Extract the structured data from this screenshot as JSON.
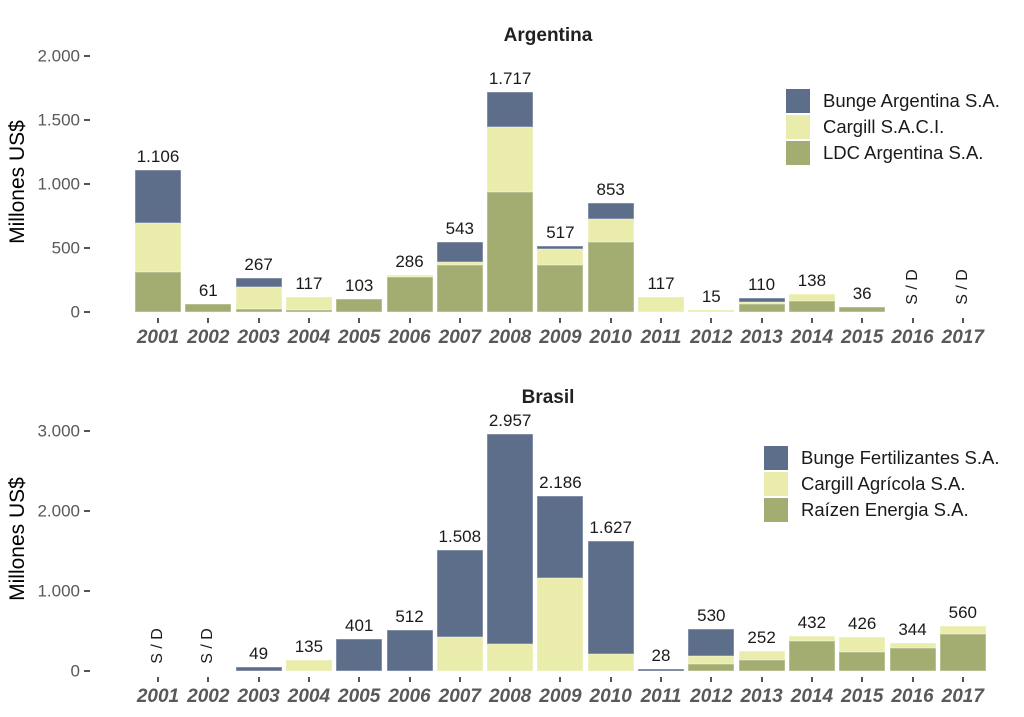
{
  "chart_data": [
    {
      "type": "bar",
      "stacked": true,
      "title": "Argentina",
      "ylabel": "Millones US$",
      "grid": false,
      "legend_position": "top-right-inside",
      "ylim": [
        0,
        2000
      ],
      "no_data_text": "S / D",
      "x": [
        "2001",
        "2002",
        "2003",
        "2004",
        "2005",
        "2006",
        "2007",
        "2008",
        "2009",
        "2010",
        "2011",
        "2012",
        "2013",
        "2014",
        "2015",
        "2016",
        "2017"
      ],
      "y_ticks": [
        {
          "v": 0,
          "label": "0"
        },
        {
          "v": 500,
          "label": "500"
        },
        {
          "v": 1000,
          "label": "1.000"
        },
        {
          "v": 1500,
          "label": "1.500"
        },
        {
          "v": 2000,
          "label": "2.000"
        }
      ],
      "totals": [
        "1.106",
        "61",
        "267",
        "117",
        "103",
        "286",
        "543",
        "1.717",
        "517",
        "853",
        "117",
        "15",
        "110",
        "138",
        "36",
        "S / D",
        "S / D"
      ],
      "series": [
        {
          "name": "LDC Argentina S.A.",
          "color": "#a3ad72",
          "values": [
            310,
            61,
            20,
            15,
            103,
            272,
            365,
            935,
            365,
            545,
            0,
            0,
            65,
            88,
            36,
            null,
            null
          ]
        },
        {
          "name": "Cargill S.A.C.I.",
          "color": "#e9ecaa",
          "values": [
            382,
            0,
            172,
            102,
            0,
            14,
            28,
            510,
            125,
            185,
            117,
            15,
            15,
            50,
            0,
            null,
            null
          ]
        },
        {
          "name": "Bunge Argentina S.A.",
          "color": "#5d6e8b",
          "values": [
            414,
            0,
            75,
            0,
            0,
            0,
            150,
            272,
            27,
            123,
            0,
            0,
            30,
            0,
            0,
            null,
            null
          ]
        }
      ],
      "legend": [
        {
          "label": "Bunge Argentina S.A.",
          "color": "#5d6e8b"
        },
        {
          "label": "Cargill S.A.C.I.",
          "color": "#e9ecaa"
        },
        {
          "label": "LDC Argentina S.A.",
          "color": "#a3ad72"
        }
      ]
    },
    {
      "type": "bar",
      "stacked": true,
      "title": "Brasil",
      "ylabel": "Millones US$",
      "grid": false,
      "legend_position": "top-right-inside",
      "ylim": [
        0,
        3000
      ],
      "no_data_text": "S / D",
      "x": [
        "2001",
        "2002",
        "2003",
        "2004",
        "2005",
        "2006",
        "2007",
        "2008",
        "2009",
        "2010",
        "2011",
        "2012",
        "2013",
        "2014",
        "2015",
        "2016",
        "2017"
      ],
      "y_ticks": [
        {
          "v": 0,
          "label": "0"
        },
        {
          "v": 1000,
          "label": "1.000"
        },
        {
          "v": 2000,
          "label": "2.000"
        },
        {
          "v": 3000,
          "label": "3.000"
        }
      ],
      "totals": [
        "S / D",
        "S / D",
        "49",
        "135",
        "401",
        "512",
        "1.508",
        "2.957",
        "2.186",
        "1.627",
        "28",
        "530",
        "252",
        "432",
        "426",
        "344",
        "560"
      ],
      "series": [
        {
          "name": "Raízen Energia S.A.",
          "color": "#a3ad72",
          "values": [
            null,
            null,
            0,
            0,
            0,
            0,
            0,
            0,
            0,
            0,
            0,
            90,
            135,
            375,
            235,
            290,
            458
          ]
        },
        {
          "name": "Cargill Agrícola S.A.",
          "color": "#e9ecaa",
          "values": [
            null,
            null,
            0,
            135,
            0,
            0,
            425,
            340,
            1160,
            210,
            0,
            100,
            117,
            57,
            191,
            54,
            102
          ]
        },
        {
          "name": "Bunge Fertilizantes S.A.",
          "color": "#5d6e8b",
          "values": [
            null,
            null,
            49,
            0,
            401,
            512,
            1083,
            2617,
            1026,
            1417,
            28,
            340,
            0,
            0,
            0,
            0,
            0
          ]
        }
      ],
      "legend": [
        {
          "label": "Bunge Fertilizantes S.A.",
          "color": "#5d6e8b"
        },
        {
          "label": "Cargill Agrícola S.A.",
          "color": "#e9ecaa"
        },
        {
          "label": "Raízen Energia S.A.",
          "color": "#a3ad72"
        }
      ]
    }
  ]
}
